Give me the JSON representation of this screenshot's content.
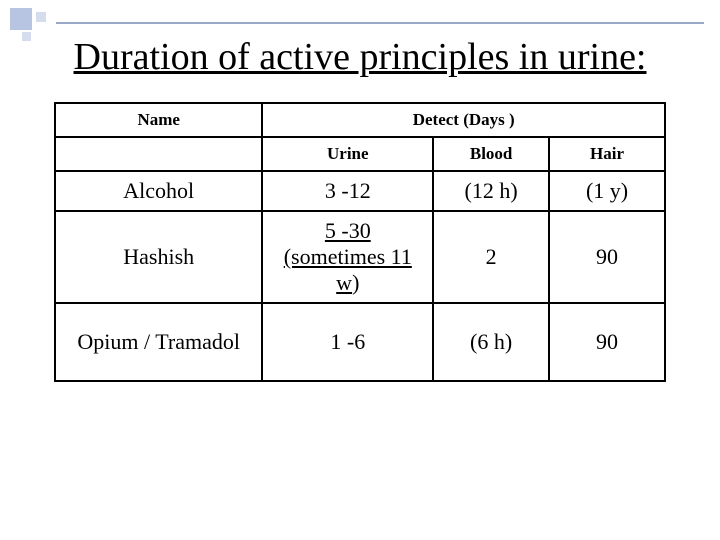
{
  "slide": {
    "title": "Duration  of active  principles in urine:",
    "table": {
      "columns": {
        "name": "Name",
        "detect": "Detect (Days )",
        "urine": "Urine",
        "blood": "Blood",
        "hair": "Hair"
      },
      "col_widths_pct": [
        34,
        28,
        19,
        19
      ],
      "rows": [
        {
          "name": "Alcohol",
          "urine": "3 -12",
          "blood": "(12 h)",
          "hair": "(1 y)"
        },
        {
          "name": "Hashish",
          "urine_line1": "5 -30",
          "urine_line2_underlined": "(sometimes 11 w",
          "urine_line2_plain": ")",
          "blood": "2",
          "hair": "90"
        },
        {
          "name": "Opium / Tramadol",
          "urine": "1 -6",
          "blood": "(6 h)",
          "hair": "90"
        }
      ]
    },
    "colors": {
      "text": "#000000",
      "border": "#000000",
      "background": "#ffffff",
      "accent_square": "#b7c4e2",
      "accent_square_light": "#d5dced",
      "hr": "#9aa9c8"
    },
    "fonts": {
      "title_size_pt": 28,
      "header_size_pt": 13,
      "body_size_pt": 16,
      "family": "Times New Roman"
    }
  }
}
